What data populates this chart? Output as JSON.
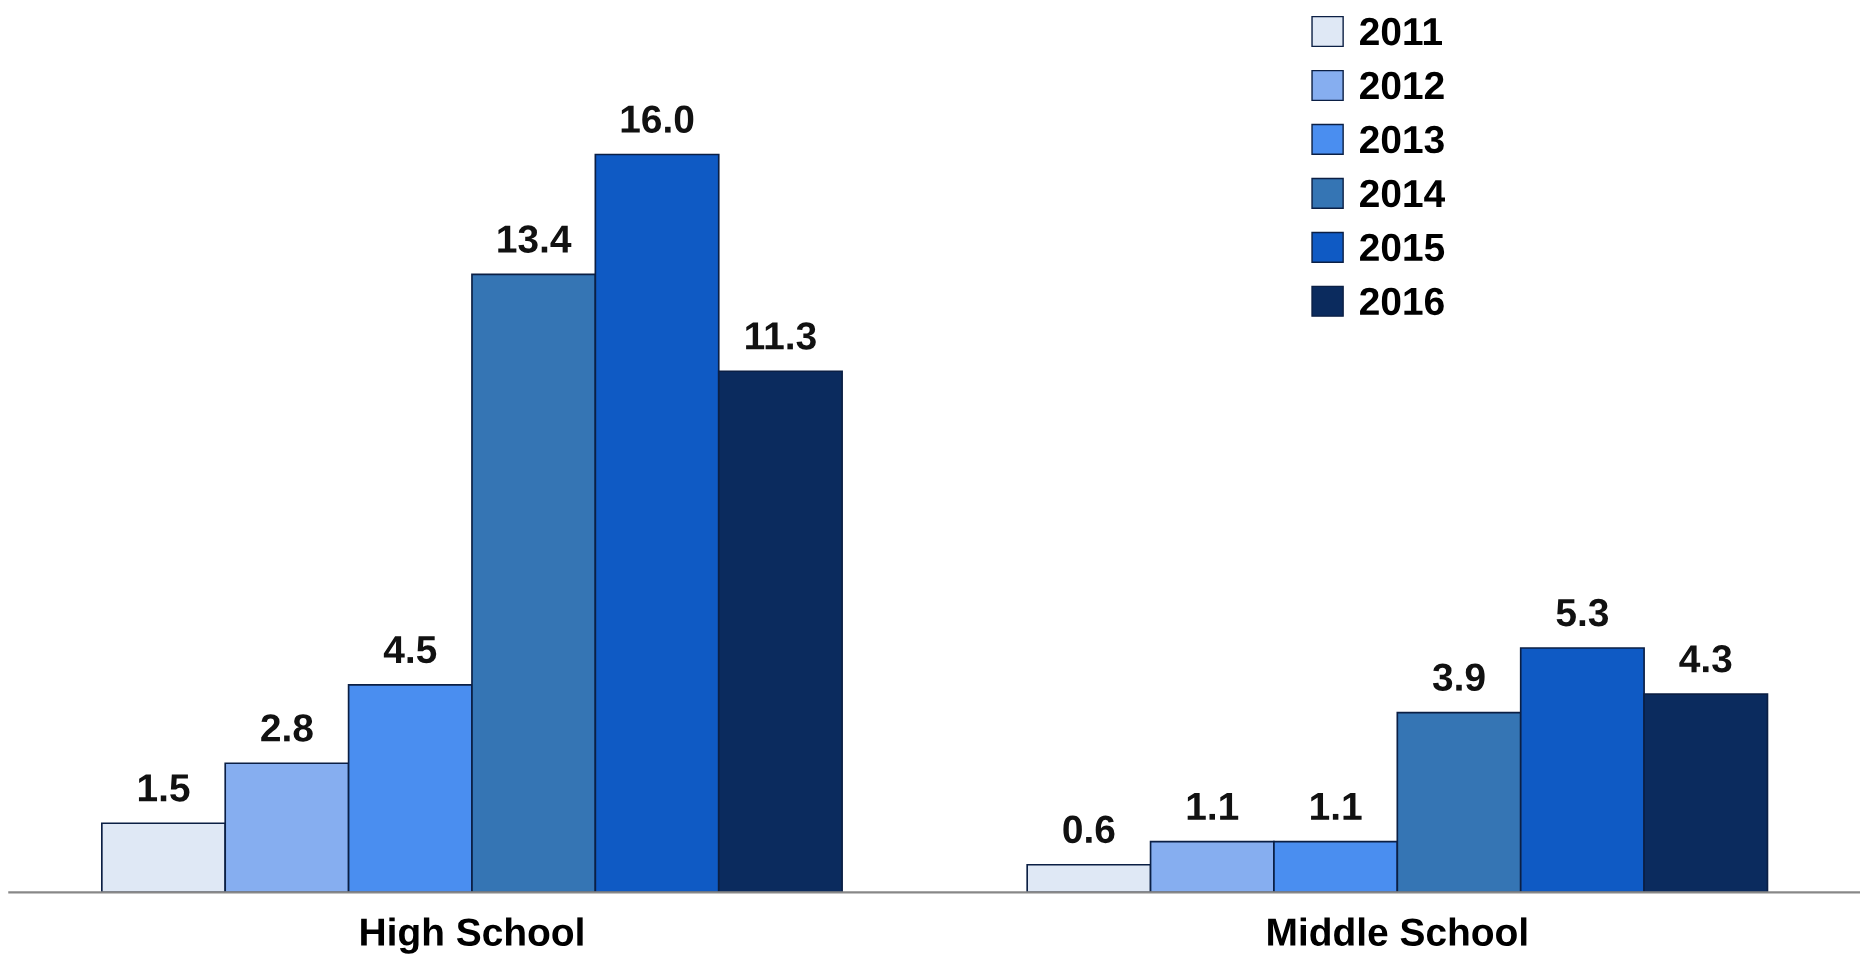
{
  "chart_data": {
    "type": "bar",
    "categories": [
      "High School",
      "Middle School"
    ],
    "series": [
      {
        "name": "2011",
        "color": "#dfe8f5",
        "values": [
          1.5,
          0.6
        ]
      },
      {
        "name": "2012",
        "color": "#86aef0",
        "values": [
          2.8,
          1.1
        ]
      },
      {
        "name": "2013",
        "color": "#4a8ef0",
        "values": [
          4.5,
          1.1
        ]
      },
      {
        "name": "2014",
        "color": "#3575b4",
        "values": [
          13.4,
          3.9
        ]
      },
      {
        "name": "2015",
        "color": "#0f5ac4",
        "values": [
          16.0,
          5.3
        ],
        "value_labels": [
          "16.0",
          "5.3"
        ]
      },
      {
        "name": "2016",
        "color": "#0b2b5e",
        "values": [
          11.3,
          4.3
        ]
      }
    ],
    "data_labels": true,
    "legend": "top right",
    "grid": false
  }
}
